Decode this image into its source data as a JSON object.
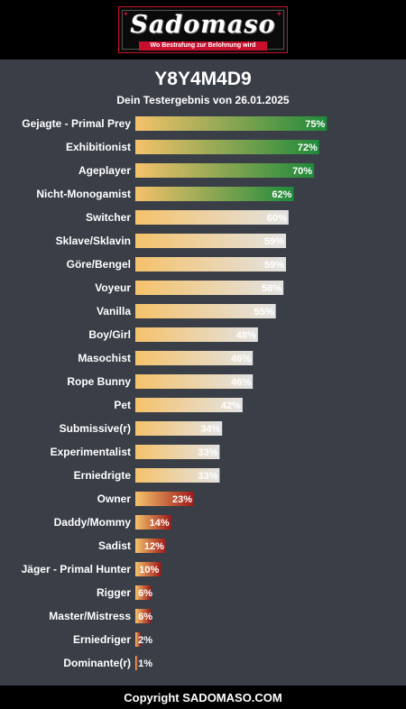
{
  "header": {
    "logo_text": "Sadomaso",
    "tagline": "Wo Bestrafung zur Belohnung wird"
  },
  "title": "Y8Y4M4D9",
  "subtitle": "Dein Testergebnis von 26.01.2025",
  "footer": "Copyright SADOMASO.COM",
  "colors": {
    "background": "#3a3f47",
    "bar_start": "#f5c26b",
    "high_end": "#1e8a3a",
    "mid_end": "#e3e3e3",
    "low_end": "#a01818"
  },
  "chart_data": {
    "type": "bar",
    "orientation": "horizontal",
    "xlim": [
      0,
      100
    ],
    "categories": [
      "Gejagte - Primal Prey",
      "Exhibitionist",
      "Ageplayer",
      "Nicht-Monogamist",
      "Switcher",
      "Sklave/Sklavin",
      "Göre/Bengel",
      "Voyeur",
      "Vanilla",
      "Boy/Girl",
      "Masochist",
      "Rope Bunny",
      "Pet",
      "Submissive(r)",
      "Experimentalist",
      "Erniedrigte",
      "Owner",
      "Daddy/Mommy",
      "Sadist",
      "Jäger - Primal Hunter",
      "Rigger",
      "Master/Mistress",
      "Erniedriger",
      "Dominante(r)"
    ],
    "values": [
      75,
      72,
      70,
      62,
      60,
      59,
      59,
      58,
      55,
      48,
      46,
      46,
      42,
      34,
      33,
      33,
      23,
      14,
      12,
      10,
      6,
      6,
      2,
      1
    ],
    "value_labels": [
      "75%",
      "72%",
      "70%",
      "62%",
      "60%",
      "59%",
      "59%",
      "58%",
      "55%",
      "48%",
      "46%",
      "46%",
      "42%",
      "34%",
      "33%",
      "33%",
      "23%",
      "14%",
      "12%",
      "10%",
      "6%",
      "6%",
      "2%",
      "1%"
    ]
  }
}
